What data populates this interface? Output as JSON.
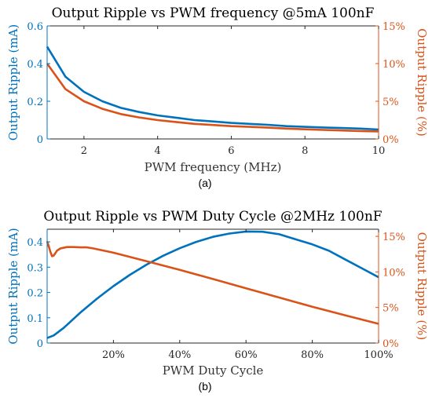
{
  "colors": {
    "left": "#0072BD",
    "right": "#D95319",
    "axis": "#262626"
  },
  "chart_data": [
    {
      "type": "line",
      "caption": "(a)",
      "title": "Output Ripple vs PWM frequency @5mA 100nF",
      "xlabel": "PWM frequency (MHz)",
      "ylabel": "Output Ripple (mA)",
      "ylabel_right": "Output Ripple (%)",
      "xlim": [
        1,
        10
      ],
      "ylim": [
        0,
        0.6
      ],
      "ylim_right": [
        0,
        15
      ],
      "xticks": [
        2,
        4,
        6,
        8,
        10
      ],
      "xtick_labels": [
        "2",
        "4",
        "6",
        "8",
        "10"
      ],
      "yticks": [
        0,
        0.2,
        0.4,
        0.6
      ],
      "ytick_labels": [
        "0",
        "0.2",
        "0.4",
        "0.6"
      ],
      "yticks_right": [
        0,
        5,
        10,
        15
      ],
      "ytick_labels_right": [
        "0%",
        "5%",
        "10%",
        "15%"
      ],
      "series": [
        {
          "axis": "left",
          "x": [
            1,
            1.5,
            2,
            2.5,
            3,
            3.5,
            4,
            4.5,
            5,
            5.5,
            6,
            6.5,
            7,
            7.5,
            8,
            8.5,
            9,
            9.5,
            10
          ],
          "values": [
            0.49,
            0.33,
            0.25,
            0.2,
            0.165,
            0.143,
            0.125,
            0.113,
            0.1,
            0.093,
            0.085,
            0.08,
            0.075,
            0.068,
            0.064,
            0.061,
            0.058,
            0.055,
            0.05
          ]
        },
        {
          "axis": "right",
          "x": [
            1,
            1.5,
            2,
            2.5,
            3,
            3.5,
            4,
            4.5,
            5,
            5.5,
            6,
            6.5,
            7,
            7.5,
            8,
            8.5,
            9,
            9.5,
            10
          ],
          "values": [
            10,
            6.6,
            5.0,
            4.0,
            3.3,
            2.85,
            2.5,
            2.25,
            2.0,
            1.85,
            1.7,
            1.6,
            1.5,
            1.38,
            1.28,
            1.2,
            1.12,
            1.05,
            1.0
          ]
        }
      ]
    },
    {
      "type": "line",
      "caption": "(b)",
      "title": "Output Ripple vs PWM Duty Cycle @2MHz 100nF",
      "xlabel": "PWM Duty Cycle",
      "ylabel": "Output Ripple (mA)",
      "ylabel_right": "Output Ripple (%)",
      "xlim": [
        0,
        100
      ],
      "ylim": [
        0,
        0.45
      ],
      "ylim_right": [
        0,
        16
      ],
      "xticks": [
        20,
        40,
        60,
        80,
        100
      ],
      "xtick_labels": [
        "20%",
        "40%",
        "60%",
        "80%",
        "100%"
      ],
      "yticks": [
        0,
        0.1,
        0.2,
        0.3,
        0.4
      ],
      "ytick_labels": [
        "0",
        "0.1",
        "0.2",
        "0.3",
        "0.4"
      ],
      "yticks_right": [
        0,
        5,
        10,
        15
      ],
      "ytick_labels_right": [
        "0%",
        "5%",
        "10%",
        "15%"
      ],
      "series": [
        {
          "axis": "left",
          "x": [
            0,
            2,
            5,
            10,
            15,
            20,
            25,
            30,
            35,
            40,
            45,
            50,
            55,
            60,
            65,
            70,
            75,
            80,
            85,
            90,
            95,
            100
          ],
          "values": [
            0.02,
            0.03,
            0.06,
            0.12,
            0.175,
            0.225,
            0.27,
            0.31,
            0.345,
            0.375,
            0.4,
            0.42,
            0.433,
            0.441,
            0.44,
            0.43,
            0.41,
            0.39,
            0.365,
            0.33,
            0.295,
            0.26
          ]
        },
        {
          "axis": "right",
          "x": [
            0,
            0.5,
            1,
            1.5,
            2,
            3,
            4,
            6,
            8,
            10,
            12,
            14,
            20,
            30,
            40,
            50,
            60,
            70,
            80,
            90,
            100
          ],
          "values": [
            14.3,
            13.6,
            12.8,
            12.2,
            12.3,
            13.0,
            13.3,
            13.5,
            13.5,
            13.45,
            13.45,
            13.3,
            12.7,
            11.5,
            10.3,
            9.0,
            7.7,
            6.4,
            5.1,
            3.9,
            2.7
          ]
        }
      ]
    }
  ]
}
